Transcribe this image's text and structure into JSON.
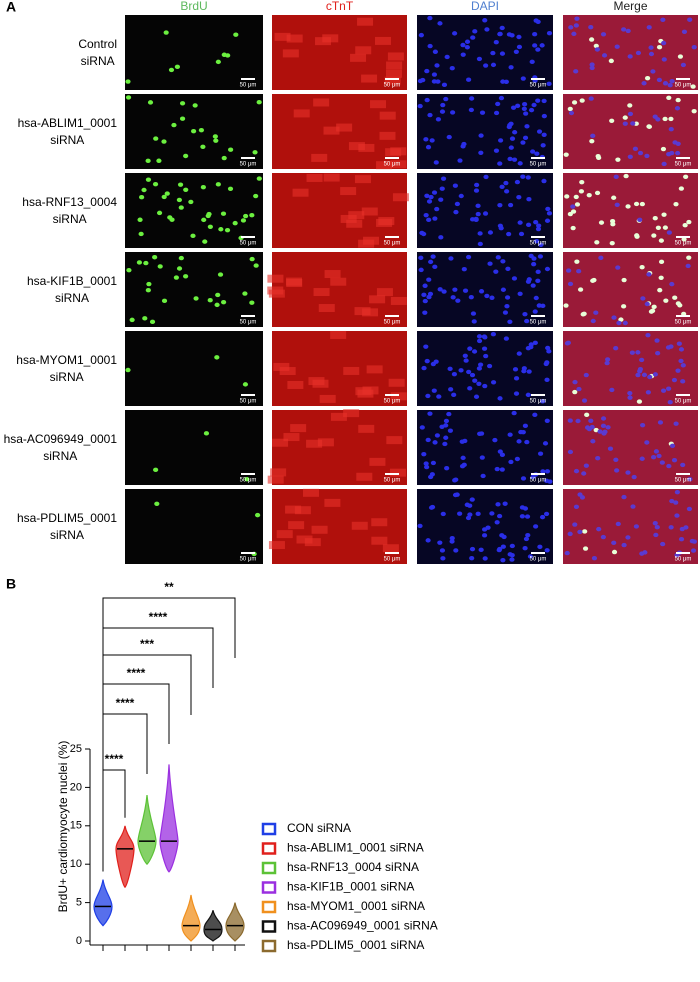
{
  "panel_a": {
    "label": "A",
    "columns": [
      "BrdU",
      "cTnT",
      "DAPI",
      "Merge"
    ],
    "rows": [
      [
        "Control",
        "siRNA"
      ],
      [
        "hsa-ABLIM1_0001",
        "siRNA"
      ],
      [
        "hsa-RNF13_0004",
        "siRNA"
      ],
      [
        "hsa-KIF1B_0001",
        "siRNA"
      ],
      [
        "hsa-MYOM1_0001",
        "siRNA"
      ],
      [
        "hsa-AC096949_0001",
        "siRNA"
      ],
      [
        "hsa-PDLIM5_0001",
        "siRNA"
      ]
    ],
    "scale_bar": "50 μm"
  },
  "chart_data": {
    "type": "violin",
    "label": "B",
    "y_label": "BrdU+ cardiomyocyte nuclei (%)",
    "ylim": [
      0,
      25
    ],
    "yticks": [
      0,
      5,
      10,
      15,
      20,
      25
    ],
    "series": [
      {
        "name": "CON siRNA",
        "color": "#1f3fe6",
        "min": 2,
        "median": 4.5,
        "max": 8
      },
      {
        "name": "hsa-ABLIM1_0001 siRNA",
        "color": "#e0201c",
        "min": 7,
        "median": 12,
        "max": 15
      },
      {
        "name": "hsa-RNF13_0004 siRNA",
        "color": "#5cc236",
        "min": 10,
        "median": 13,
        "max": 19
      },
      {
        "name": "hsa-KIF1B_0001 siRNA",
        "color": "#9a2fe0",
        "min": 9,
        "median": 13,
        "max": 23
      },
      {
        "name": "hsa-MYOM1_0001 siRNA",
        "color": "#f0901e",
        "min": 0,
        "median": 2,
        "max": 6
      },
      {
        "name": "hsa-AC096949_0001 siRNA",
        "color": "#111111",
        "min": 0,
        "median": 1.5,
        "max": 4
      },
      {
        "name": "hsa-PDLIM5_0001 siRNA",
        "color": "#8b6a2e",
        "min": 0,
        "median": 2,
        "max": 5
      }
    ],
    "annotations": [
      "****",
      "****",
      "****",
      "***",
      "****",
      "**"
    ]
  }
}
